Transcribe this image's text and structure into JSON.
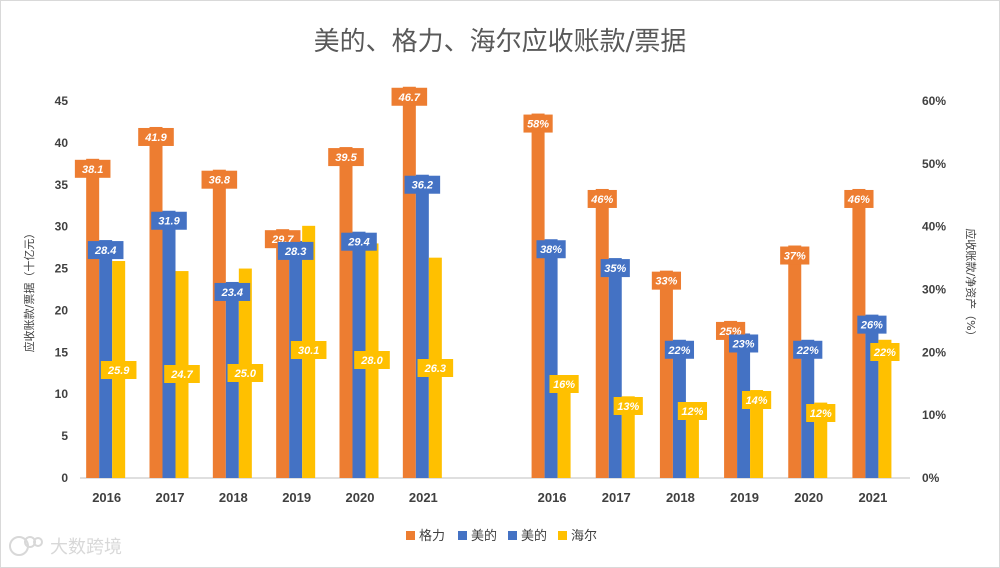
{
  "watermark": "大数跨境",
  "chart_data": {
    "type": "bar",
    "title": "美的、格力、海尔应收账款/票据",
    "colors": {
      "geli": "#ED7D31",
      "midea": "#4472C4",
      "haier": "#FFC000"
    },
    "legend": {
      "placement": "bottom",
      "entries": [
        {
          "name": "格力",
          "color": "#ED7D31"
        },
        {
          "name": "美的",
          "color": "#4472C4"
        },
        {
          "name": "美的",
          "color": "#4472C4"
        },
        {
          "name": "海尔",
          "color": "#FFC000"
        }
      ]
    },
    "panels": [
      {
        "categories": [
          "2016",
          "2017",
          "2018",
          "2019",
          "2020",
          "2021"
        ],
        "ylabel": "应收账款/票据（十亿元）",
        "ylim": [
          0,
          45
        ],
        "yticks": [
          0,
          5,
          10,
          15,
          20,
          25,
          30,
          35,
          40,
          45
        ],
        "series": [
          {
            "name": "格力",
            "values": [
              38.1,
              41.9,
              36.8,
              29.7,
              39.5,
              46.7
            ],
            "labels": [
              "38.1",
              "41.9",
              "36.8",
              "29.7",
              "39.5",
              "46.7"
            ]
          },
          {
            "name": "美的",
            "values": [
              28.4,
              31.9,
              23.4,
              28.3,
              29.4,
              36.2
            ],
            "labels": [
              "28.4",
              "31.9",
              "23.4",
              "28.3",
              "29.4",
              "36.2"
            ]
          },
          {
            "name": "海尔",
            "values": [
              25.9,
              24.7,
              25.0,
              30.1,
              28.0,
              26.3
            ],
            "labels": [
              "25.9",
              "24.7",
              "25.0",
              "30.1",
              "28.0",
              "26.3"
            ]
          }
        ]
      },
      {
        "categories": [
          "2016",
          "2017",
          "2018",
          "2019",
          "2020",
          "2021"
        ],
        "ylabel": "应收账款/净资产（%）",
        "ylim": [
          0,
          60
        ],
        "yticks": [
          "0%",
          "10%",
          "20%",
          "30%",
          "40%",
          "50%",
          "60%"
        ],
        "series": [
          {
            "name": "格力",
            "values": [
              58,
              46,
              33,
              25,
              37,
              46
            ],
            "labels": [
              "58%",
              "46%",
              "33%",
              "25%",
              "37%",
              "46%"
            ]
          },
          {
            "name": "美的",
            "values": [
              38,
              35,
              22,
              23,
              22,
              26
            ],
            "labels": [
              "38%",
              "35%",
              "22%",
              "23%",
              "22%",
              "26%"
            ]
          },
          {
            "name": "海尔",
            "values": [
              16,
              13,
              12,
              14,
              12,
              22
            ],
            "labels": [
              "16%",
              "13%",
              "12%",
              "14%",
              "12%",
              "22%"
            ]
          }
        ]
      }
    ],
    "grid": false
  }
}
